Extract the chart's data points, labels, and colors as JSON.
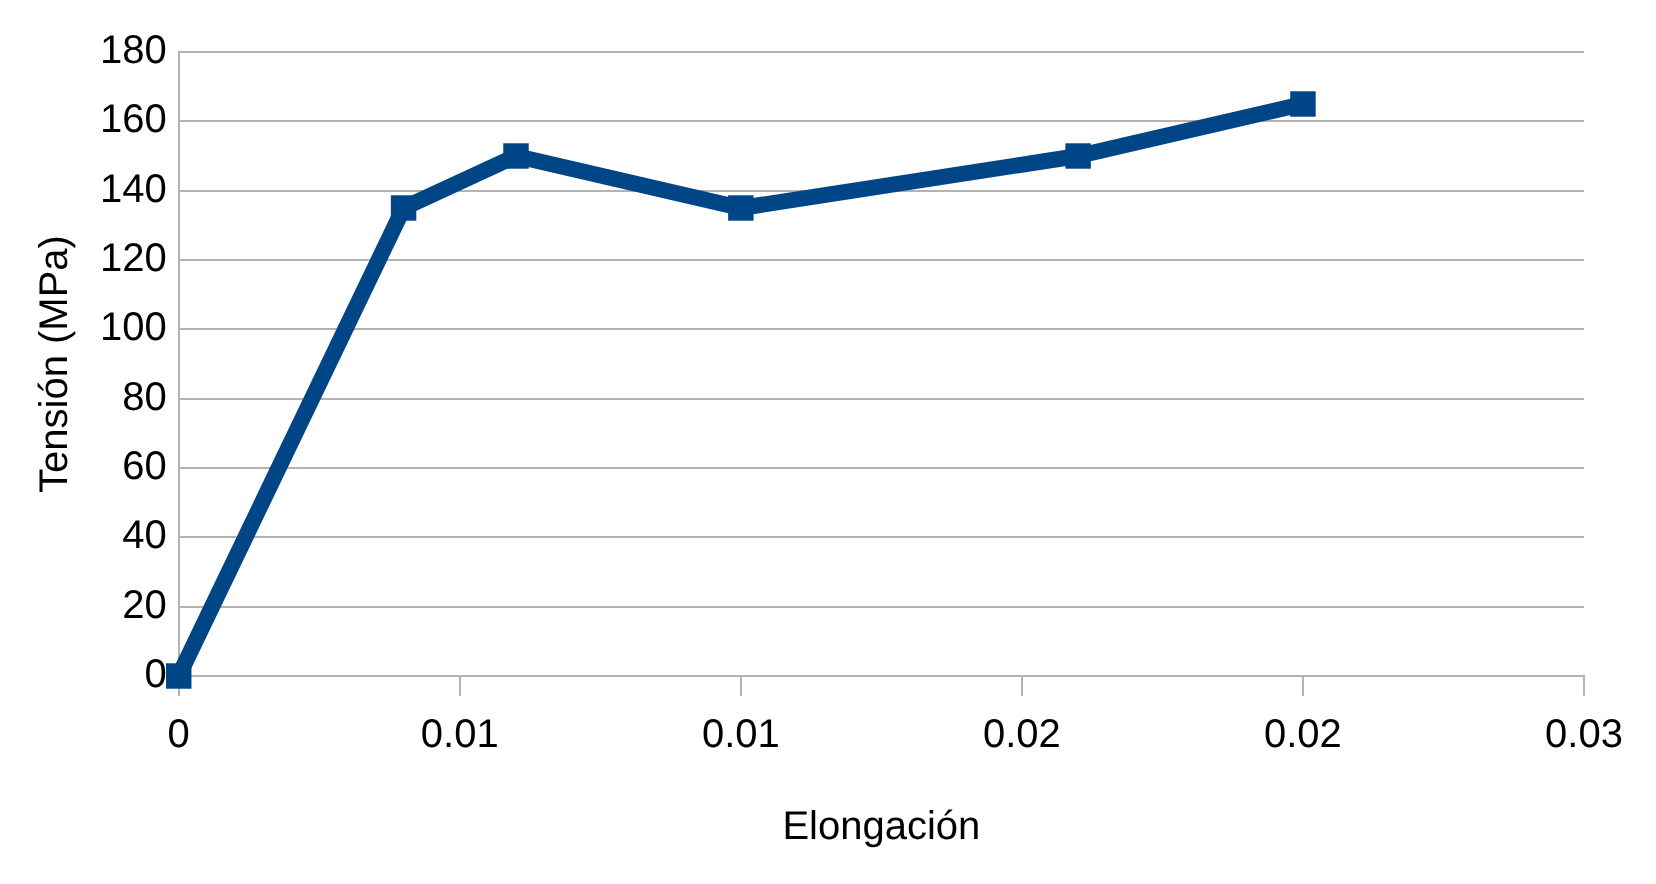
{
  "chart_data": {
    "type": "line",
    "xlabel": "Elongación",
    "ylabel": "Tensión (MPa)",
    "x": [
      0,
      0.004,
      0.006,
      0.01,
      0.016,
      0.02
    ],
    "series": [
      {
        "color": "#004586",
        "values": [
          0,
          135,
          150,
          135,
          150,
          165
        ]
      }
    ],
    "xlim": [
      0,
      0.025
    ],
    "xticks": [
      {
        "value": 0,
        "label": "0"
      },
      {
        "value": 0.005,
        "label": "0.01"
      },
      {
        "value": 0.01,
        "label": "0.01"
      },
      {
        "value": 0.015,
        "label": "0.02"
      },
      {
        "value": 0.02,
        "label": "0.02"
      },
      {
        "value": 0.025,
        "label": "0.03"
      }
    ],
    "ylim": [
      0,
      180
    ],
    "yticks": [
      0,
      20,
      40,
      60,
      80,
      100,
      120,
      140,
      160,
      180
    ],
    "grid": "y",
    "legend": false,
    "marker": "square",
    "line_style": "solid"
  }
}
